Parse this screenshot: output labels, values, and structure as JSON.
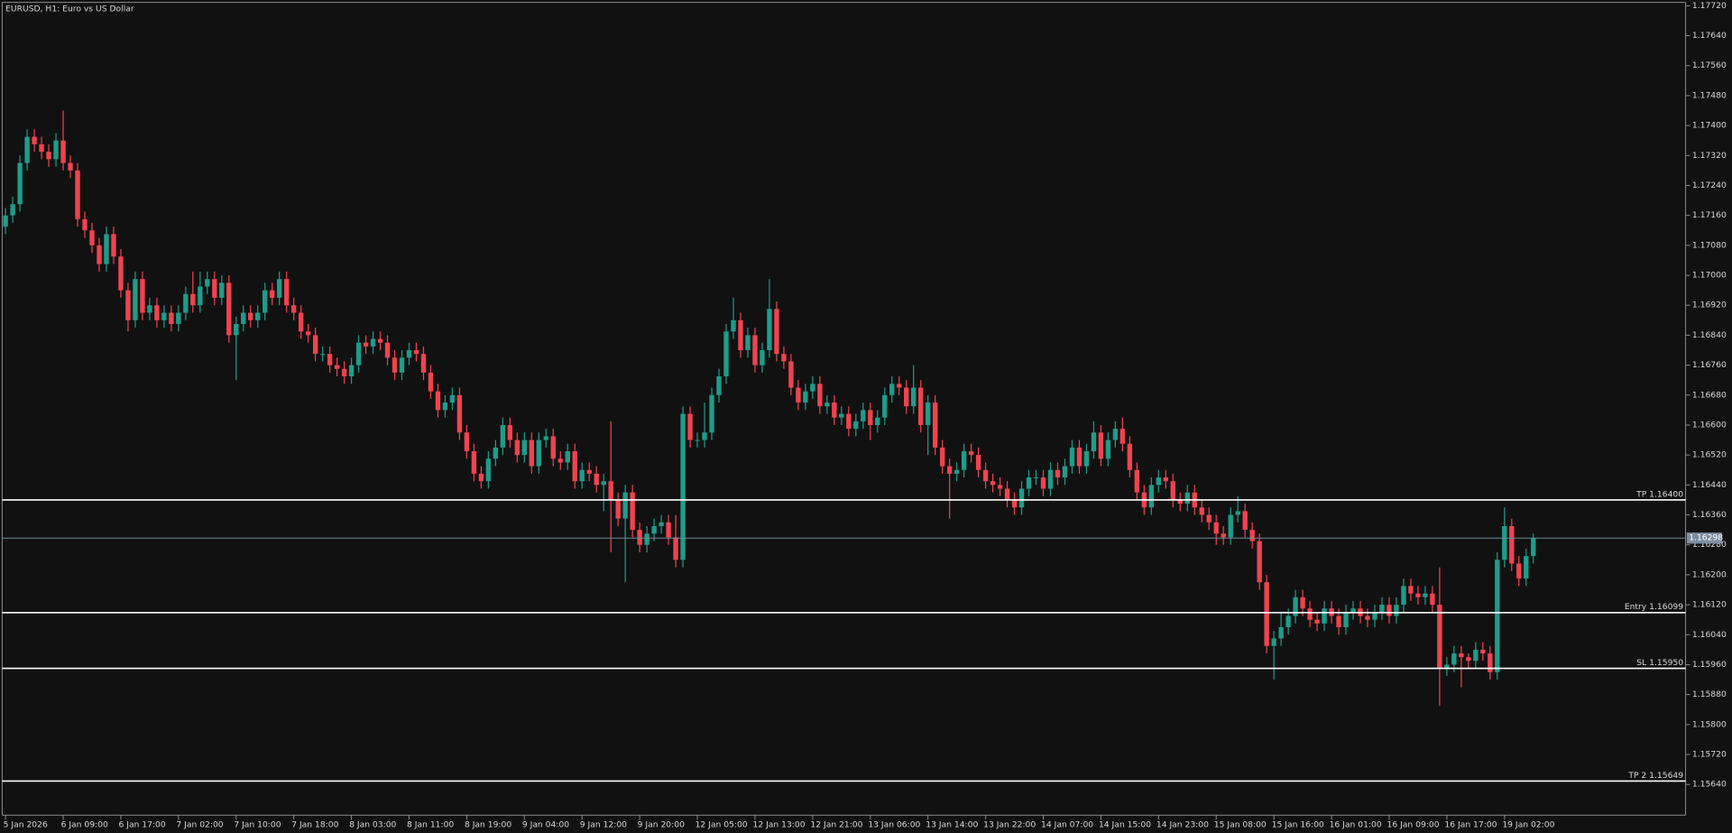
{
  "chart_data": {
    "type": "candlestick",
    "title": "EURUSD, H1:  Euro vs US Dollar",
    "up_color": "#1f9c8a",
    "down_color": "#f0434f",
    "grid": false,
    "categories": [
      "5 Jan 2026",
      null,
      null,
      null,
      null,
      null,
      null,
      null,
      "6 Jan 09:00",
      null,
      null,
      null,
      null,
      null,
      null,
      null,
      "6 Jan 17:00",
      null,
      null,
      null,
      null,
      null,
      null,
      null,
      "7 Jan 02:00",
      null,
      null,
      null,
      null,
      null,
      null,
      null,
      "7 Jan 10:00",
      null,
      null,
      null,
      null,
      null,
      null,
      null,
      "7 Jan 18:00",
      null,
      null,
      null,
      null,
      null,
      null,
      null,
      "8 Jan 03:00",
      null,
      null,
      null,
      null,
      null,
      null,
      null,
      "8 Jan 11:00",
      null,
      null,
      null,
      null,
      null,
      null,
      null,
      "8 Jan 19:00",
      null,
      null,
      null,
      null,
      null,
      null,
      null,
      "9 Jan 04:00",
      null,
      null,
      null,
      null,
      null,
      null,
      null,
      "9 Jan 12:00",
      null,
      null,
      null,
      null,
      null,
      null,
      null,
      "9 Jan 20:00",
      null,
      null,
      null,
      null,
      null,
      null,
      null,
      "12 Jan 05:00",
      null,
      null,
      null,
      null,
      null,
      null,
      null,
      "12 Jan 13:00",
      null,
      null,
      null,
      null,
      null,
      null,
      null,
      "12 Jan 21:00",
      null,
      null,
      null,
      null,
      null,
      null,
      null,
      "13 Jan 06:00",
      null,
      null,
      null,
      null,
      null,
      null,
      null,
      "13 Jan 14:00",
      null,
      null,
      null,
      null,
      null,
      null,
      null,
      "13 Jan 22:00",
      null,
      null,
      null,
      null,
      null,
      null,
      null,
      "14 Jan 07:00",
      null,
      null,
      null,
      null,
      null,
      null,
      null,
      "14 Jan 15:00",
      null,
      null,
      null,
      null,
      null,
      null,
      null,
      "14 Jan 23:00",
      null,
      null,
      null,
      null,
      null,
      null,
      null,
      "15 Jan 08:00",
      null,
      null,
      null,
      null,
      null,
      null,
      null,
      "15 Jan 16:00",
      null,
      null,
      null,
      null,
      null,
      null,
      null,
      "16 Jan 01:00",
      null,
      null,
      null,
      null,
      null,
      null,
      null,
      "16 Jan 09:00",
      null,
      null,
      null,
      null,
      null,
      null,
      null,
      "16 Jan 17:00",
      null,
      null,
      null,
      null,
      null,
      null,
      null,
      "19 Jan 02:00",
      null,
      null,
      null,
      null
    ],
    "open": [
      1.1713,
      1.1716,
      1.1719,
      1.173,
      1.1737,
      1.1735,
      1.1733,
      1.1731,
      1.1736,
      1.173,
      1.1728,
      1.1715,
      1.1712,
      1.1708,
      1.1703,
      1.1711,
      1.1705,
      1.1696,
      1.1688,
      1.1699,
      1.169,
      1.1692,
      1.1688,
      1.169,
      1.1687,
      1.169,
      1.1695,
      1.1692,
      1.1697,
      1.1699,
      1.1694,
      1.1698,
      1.1684,
      1.1687,
      1.169,
      1.1688,
      1.169,
      1.1696,
      1.1694,
      1.1699,
      1.1692,
      1.169,
      1.1685,
      1.1684,
      1.1679,
      1.1679,
      1.1676,
      1.1675,
      1.1673,
      1.1676,
      1.1682,
      1.1681,
      1.1683,
      1.1682,
      1.1678,
      1.1674,
      1.1678,
      1.168,
      1.1679,
      1.1674,
      1.1669,
      1.1664,
      1.1666,
      1.1668,
      1.1658,
      1.1653,
      1.1647,
      1.1645,
      1.1651,
      1.1654,
      1.166,
      1.1656,
      1.1652,
      1.1656,
      1.1649,
      1.1656,
      1.1657,
      1.1651,
      1.165,
      1.1653,
      1.1645,
      1.1648,
      1.1647,
      1.1644,
      1.1645,
      1.164,
      1.1635,
      1.1642,
      1.1632,
      1.1628,
      1.1631,
      1.1633,
      1.1634,
      1.163,
      1.1624,
      1.1663,
      1.1656,
      1.1656,
      1.1658,
      1.1668,
      1.1673,
      1.1685,
      1.1688,
      1.168,
      1.1684,
      1.1676,
      1.168,
      1.1691,
      1.1679,
      1.1677,
      1.167,
      1.1666,
      1.1669,
      1.1671,
      1.1665,
      1.1666,
      1.1662,
      1.1663,
      1.1659,
      1.1661,
      1.1664,
      1.166,
      1.1662,
      1.1668,
      1.1671,
      1.167,
      1.1665,
      1.167,
      1.166,
      1.1666,
      1.1654,
      1.1649,
      1.1647,
      1.1648,
      1.1653,
      1.1652,
      1.1648,
      1.1645,
      1.1644,
      1.1643,
      1.164,
      1.1638,
      1.1643,
      1.1646,
      1.1646,
      1.1643,
      1.1648,
      1.1646,
      1.1649,
      1.1654,
      1.1649,
      1.1653,
      1.1658,
      1.1651,
      1.1656,
      1.1659,
      1.1655,
      1.1648,
      1.1642,
      1.1638,
      1.1644,
      1.1646,
      1.1645,
      1.164,
      1.1639,
      1.1642,
      1.1638,
      1.1636,
      1.1634,
      1.1631,
      1.163,
      1.1636,
      1.1637,
      1.1632,
      1.1629,
      1.1618,
      1.1601,
      1.1603,
      1.1606,
      1.1609,
      1.1614,
      1.1611,
      1.1608,
      1.1607,
      1.1611,
      1.1609,
      1.1606,
      1.161,
      1.1611,
      1.1609,
      1.1608,
      1.161,
      1.1612,
      1.1609,
      1.1612,
      1.1617,
      1.1615,
      1.1614,
      1.1615,
      1.1612,
      1.1595,
      1.1596,
      1.1599,
      1.1598,
      1.1597,
      1.16,
      1.1599,
      1.1594,
      1.1624,
      1.1633,
      1.1623,
      1.1619,
      1.1625
    ],
    "high": [
      1.1718,
      1.1721,
      1.1732,
      1.1739,
      1.1739,
      1.1737,
      1.1735,
      1.1738,
      1.1744,
      1.1732,
      1.173,
      1.1717,
      1.1714,
      1.171,
      1.1713,
      1.1713,
      1.1707,
      1.1698,
      1.1701,
      1.1701,
      1.1694,
      1.1694,
      1.1692,
      1.1692,
      1.1692,
      1.1697,
      1.1701,
      1.1701,
      1.1701,
      1.1701,
      1.17,
      1.17,
      1.1689,
      1.1692,
      1.1692,
      1.1692,
      1.1698,
      1.1698,
      1.1701,
      1.1701,
      1.1694,
      1.1692,
      1.1687,
      1.1686,
      1.1681,
      1.1681,
      1.1678,
      1.1677,
      1.1678,
      1.1684,
      1.1684,
      1.1685,
      1.1685,
      1.1684,
      1.168,
      1.168,
      1.1682,
      1.1682,
      1.1681,
      1.1676,
      1.1671,
      1.1668,
      1.167,
      1.167,
      1.166,
      1.1655,
      1.1649,
      1.1653,
      1.1656,
      1.1662,
      1.1662,
      1.1658,
      1.1658,
      1.1658,
      1.1658,
      1.1659,
      1.1659,
      1.1653,
      1.1655,
      1.1655,
      1.165,
      1.165,
      1.1649,
      1.1647,
      1.1661,
      1.1642,
      1.1644,
      1.1644,
      1.1634,
      1.1633,
      1.1635,
      1.1636,
      1.1636,
      1.1636,
      1.1665,
      1.1665,
      1.1658,
      1.1666,
      1.167,
      1.1675,
      1.1687,
      1.1694,
      1.169,
      1.1686,
      1.1686,
      1.1682,
      1.1699,
      1.1693,
      1.1681,
      1.1679,
      1.1672,
      1.1671,
      1.1673,
      1.1673,
      1.1668,
      1.1668,
      1.1665,
      1.1665,
      1.1663,
      1.1666,
      1.1666,
      1.1664,
      1.167,
      1.1673,
      1.1673,
      1.1672,
      1.1676,
      1.1672,
      1.1668,
      1.1668,
      1.1656,
      1.1651,
      1.165,
      1.1655,
      1.1655,
      1.1654,
      1.165,
      1.1647,
      1.1646,
      1.1645,
      1.1642,
      1.1645,
      1.1648,
      1.1648,
      1.1648,
      1.165,
      1.165,
      1.1651,
      1.1656,
      1.1656,
      1.1655,
      1.1661,
      1.166,
      1.1658,
      1.1661,
      1.1662,
      1.1657,
      1.165,
      1.1644,
      1.1646,
      1.1648,
      1.1648,
      1.1647,
      1.1642,
      1.1644,
      1.1644,
      1.164,
      1.1638,
      1.1636,
      1.1633,
      1.1638,
      1.1641,
      1.1639,
      1.1634,
      1.1631,
      1.162,
      1.1605,
      1.161,
      1.1611,
      1.1616,
      1.1616,
      1.1613,
      1.161,
      1.1613,
      1.1613,
      1.1611,
      1.1612,
      1.1613,
      1.1613,
      1.1611,
      1.1612,
      1.1614,
      1.1614,
      1.1614,
      1.1619,
      1.1619,
      1.1617,
      1.1617,
      1.1617,
      1.1622,
      1.1598,
      1.1601,
      1.1601,
      1.1599,
      1.1602,
      1.1602,
      1.1601,
      1.1626,
      1.1638,
      1.1635,
      1.1625,
      1.1627,
      1.1631
    ],
    "low": [
      1.1711,
      1.1714,
      1.1717,
      1.1728,
      1.1733,
      1.1731,
      1.1729,
      1.1729,
      1.1728,
      1.1726,
      1.1713,
      1.171,
      1.1706,
      1.1701,
      1.1701,
      1.1703,
      1.1694,
      1.1685,
      1.1686,
      1.1688,
      1.1688,
      1.1686,
      1.1686,
      1.1685,
      1.1685,
      1.1688,
      1.169,
      1.169,
      1.1695,
      1.1692,
      1.1692,
      1.1682,
      1.1672,
      1.1685,
      1.1686,
      1.1686,
      1.1688,
      1.1692,
      1.1692,
      1.169,
      1.1688,
      1.1683,
      1.1682,
      1.1677,
      1.1677,
      1.1674,
      1.1673,
      1.1671,
      1.1671,
      1.1674,
      1.1679,
      1.1679,
      1.168,
      1.1676,
      1.1672,
      1.1672,
      1.1676,
      1.1677,
      1.1672,
      1.1667,
      1.1662,
      1.1662,
      1.1664,
      1.1656,
      1.1651,
      1.1645,
      1.1643,
      1.1643,
      1.1649,
      1.1652,
      1.1654,
      1.165,
      1.165,
      1.1647,
      1.1647,
      1.1654,
      1.1649,
      1.1648,
      1.1648,
      1.1643,
      1.1643,
      1.1645,
      1.1642,
      1.1637,
      1.1626,
      1.1633,
      1.1618,
      1.163,
      1.1626,
      1.1626,
      1.1629,
      1.1631,
      1.1628,
      1.1622,
      1.1622,
      1.1654,
      1.1654,
      1.1654,
      1.1656,
      1.1666,
      1.1671,
      1.1683,
      1.1678,
      1.1678,
      1.1674,
      1.1674,
      1.1678,
      1.1677,
      1.1675,
      1.1668,
      1.1664,
      1.1664,
      1.1667,
      1.1663,
      1.1663,
      1.166,
      1.166,
      1.1657,
      1.1657,
      1.1659,
      1.1656,
      1.1658,
      1.166,
      1.1666,
      1.1668,
      1.1663,
      1.1663,
      1.1658,
      1.1652,
      1.1652,
      1.1647,
      1.1635,
      1.1645,
      1.1646,
      1.165,
      1.1646,
      1.1643,
      1.1642,
      1.1641,
      1.1638,
      1.1636,
      1.1636,
      1.1641,
      1.1644,
      1.1641,
      1.1641,
      1.1644,
      1.1644,
      1.1647,
      1.1647,
      1.1647,
      1.1651,
      1.1649,
      1.1649,
      1.1654,
      1.1653,
      1.1646,
      1.164,
      1.1636,
      1.1636,
      1.1642,
      1.1643,
      1.1638,
      1.1637,
      1.1637,
      1.1636,
      1.1634,
      1.1632,
      1.1628,
      1.1628,
      1.1628,
      1.1634,
      1.163,
      1.1627,
      1.1616,
      1.1599,
      1.1592,
      1.1601,
      1.1604,
      1.1607,
      1.1609,
      1.1606,
      1.1605,
      1.1605,
      1.1607,
      1.1604,
      1.1604,
      1.1608,
      1.1607,
      1.1606,
      1.1606,
      1.1608,
      1.1607,
      1.1607,
      1.161,
      1.1613,
      1.1612,
      1.1612,
      1.161,
      1.1585,
      1.1593,
      1.1594,
      1.159,
      1.1595,
      1.1595,
      1.1597,
      1.1592,
      1.1592,
      1.1622,
      1.1621,
      1.1617,
      1.1617,
      1.1623
    ],
    "close": [
      1.1716,
      1.1719,
      1.173,
      1.1737,
      1.1735,
      1.1733,
      1.1731,
      1.1736,
      1.173,
      1.1728,
      1.1715,
      1.1712,
      1.1708,
      1.1703,
      1.1711,
      1.1705,
      1.1696,
      1.1688,
      1.1699,
      1.169,
      1.1692,
      1.1688,
      1.169,
      1.1687,
      1.169,
      1.1695,
      1.1692,
      1.1697,
      1.1699,
      1.1694,
      1.1698,
      1.1684,
      1.1687,
      1.169,
      1.1688,
      1.169,
      1.1696,
      1.1694,
      1.1699,
      1.1692,
      1.169,
      1.1685,
      1.1684,
      1.1679,
      1.1679,
      1.1676,
      1.1675,
      1.1673,
      1.1676,
      1.1682,
      1.1681,
      1.1683,
      1.1682,
      1.1678,
      1.1674,
      1.1678,
      1.168,
      1.1679,
      1.1674,
      1.1669,
      1.1664,
      1.1666,
      1.1668,
      1.1658,
      1.1653,
      1.1647,
      1.1645,
      1.1651,
      1.1654,
      1.166,
      1.1656,
      1.1652,
      1.1656,
      1.1649,
      1.1656,
      1.1657,
      1.1651,
      1.165,
      1.1653,
      1.1645,
      1.1648,
      1.1647,
      1.1644,
      1.1645,
      1.164,
      1.1635,
      1.1642,
      1.1632,
      1.1628,
      1.1631,
      1.1633,
      1.1634,
      1.163,
      1.1624,
      1.1663,
      1.1656,
      1.1656,
      1.1658,
      1.1668,
      1.1673,
      1.1685,
      1.1688,
      1.168,
      1.1684,
      1.1676,
      1.168,
      1.1691,
      1.1679,
      1.1677,
      1.167,
      1.1666,
      1.1669,
      1.1671,
      1.1665,
      1.1666,
      1.1662,
      1.1663,
      1.1659,
      1.1661,
      1.1664,
      1.166,
      1.1662,
      1.1668,
      1.1671,
      1.167,
      1.1665,
      1.167,
      1.166,
      1.1666,
      1.1654,
      1.1649,
      1.1647,
      1.1648,
      1.1653,
      1.1652,
      1.1648,
      1.1645,
      1.1644,
      1.1643,
      1.164,
      1.1638,
      1.1643,
      1.1646,
      1.1646,
      1.1643,
      1.1648,
      1.1646,
      1.1649,
      1.1654,
      1.1649,
      1.1653,
      1.1658,
      1.1651,
      1.1656,
      1.1659,
      1.1655,
      1.1648,
      1.1642,
      1.1638,
      1.1644,
      1.1646,
      1.1645,
      1.164,
      1.1639,
      1.1642,
      1.1638,
      1.1636,
      1.1634,
      1.1631,
      1.163,
      1.1636,
      1.1637,
      1.1632,
      1.1629,
      1.1618,
      1.1601,
      1.1603,
      1.1606,
      1.1609,
      1.1614,
      1.1611,
      1.1608,
      1.1607,
      1.1611,
      1.1609,
      1.1606,
      1.161,
      1.1611,
      1.1609,
      1.1608,
      1.161,
      1.1612,
      1.1609,
      1.1612,
      1.1617,
      1.1615,
      1.1614,
      1.1615,
      1.1612,
      1.1595,
      1.1596,
      1.1599,
      1.1598,
      1.1597,
      1.16,
      1.1599,
      1.1594,
      1.1624,
      1.1633,
      1.1623,
      1.1619,
      1.1625,
      1.16298
    ],
    "ylim": [
      1.15558,
      1.17729
    ],
    "yticks": [
      {
        "value": 1.1772,
        "label": "1.17720"
      },
      {
        "value": 1.1764,
        "label": "1.17640"
      },
      {
        "value": 1.1756,
        "label": "1.17560"
      },
      {
        "value": 1.1748,
        "label": "1.17480"
      },
      {
        "value": 1.174,
        "label": "1.17400"
      },
      {
        "value": 1.1732,
        "label": "1.17320"
      },
      {
        "value": 1.1724,
        "label": "1.17240"
      },
      {
        "value": 1.1716,
        "label": "1.17160"
      },
      {
        "value": 1.1708,
        "label": "1.17080"
      },
      {
        "value": 1.17,
        "label": "1.17000"
      },
      {
        "value": 1.1692,
        "label": "1.16920"
      },
      {
        "value": 1.1684,
        "label": "1.16840"
      },
      {
        "value": 1.1676,
        "label": "1.16760"
      },
      {
        "value": 1.1668,
        "label": "1.16680"
      },
      {
        "value": 1.166,
        "label": "1.16600"
      },
      {
        "value": 1.1652,
        "label": "1.16520"
      },
      {
        "value": 1.1644,
        "label": "1.16440"
      },
      {
        "value": 1.1636,
        "label": "1.16360"
      },
      {
        "value": 1.1628,
        "label": "1.16280"
      },
      {
        "value": 1.162,
        "label": "1.16200"
      },
      {
        "value": 1.1612,
        "label": "1.16120"
      },
      {
        "value": 1.1604,
        "label": "1.16040"
      },
      {
        "value": 1.1596,
        "label": "1.15960"
      },
      {
        "value": 1.1588,
        "label": "1.15880"
      },
      {
        "value": 1.158,
        "label": "1.15800"
      },
      {
        "value": 1.1572,
        "label": "1.15720"
      },
      {
        "value": 1.1564,
        "label": "1.15640"
      }
    ],
    "hlines": [
      {
        "value": 1.164,
        "label": "TP 1.16400"
      },
      {
        "value": 1.16099,
        "label": "Entry 1.16099"
      },
      {
        "value": 1.1595,
        "label": "SL 1.15950"
      },
      {
        "value": 1.15649,
        "label": "TP 2 1.15649"
      }
    ],
    "last_price": {
      "value": 1.16298,
      "label": "1.16298"
    }
  }
}
